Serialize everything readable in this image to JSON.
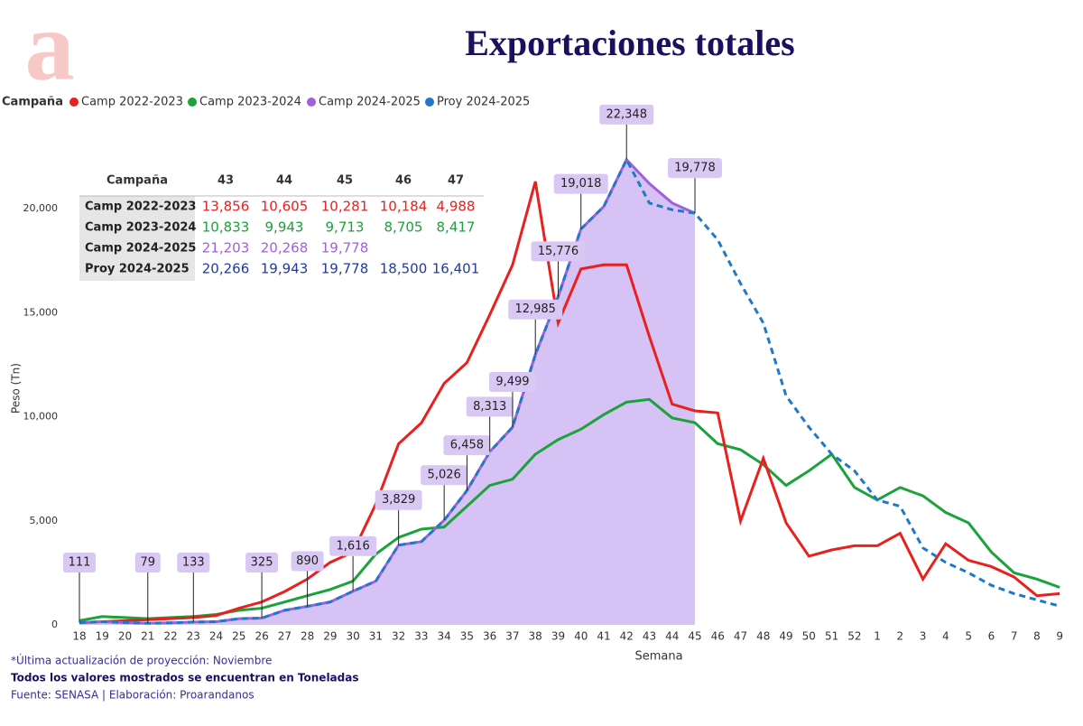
{
  "logo": "a",
  "chart_data": {
    "type": "line",
    "title": "Exportaciones totales",
    "legend_title": "Campaña",
    "xlabel": "Semana",
    "ylabel": "Peso (Tn)",
    "categories": [
      "18",
      "19",
      "20",
      "21",
      "22",
      "23",
      "24",
      "25",
      "26",
      "27",
      "28",
      "29",
      "30",
      "31",
      "32",
      "33",
      "34",
      "35",
      "36",
      "37",
      "38",
      "39",
      "40",
      "41",
      "42",
      "43",
      "44",
      "45",
      "46",
      "47",
      "48",
      "49",
      "50",
      "51",
      "52",
      "1",
      "2",
      "3",
      "4",
      "5",
      "6",
      "7",
      "8",
      "9"
    ],
    "ylim": [
      0,
      20000
    ],
    "yticks": [
      0,
      {
        "value": 5000,
        "label": "5,000"
      },
      {
        "value": 10000,
        "label": "10,000"
      },
      {
        "value": 15000,
        "label": "15,000"
      },
      {
        "value": 20000,
        "label": "20,000"
      }
    ],
    "series": [
      {
        "name": "Camp 2022-2023",
        "color": "#e8201e",
        "values": [
          100,
          150,
          200,
          250,
          300,
          350,
          450,
          800,
          1100,
          1600,
          2200,
          3000,
          3500,
          5800,
          8700,
          9700,
          11600,
          12600,
          14900,
          17300,
          21300,
          14500,
          17100,
          17300,
          17300,
          13856,
          10605,
          10281,
          10184,
          4988,
          8000,
          4900,
          3300,
          3600,
          3800,
          3800,
          4400,
          2200,
          3900,
          3100,
          2800,
          2300,
          1400,
          1500
        ]
      },
      {
        "name": "Camp 2023-2024",
        "color": "#1aa33a",
        "values": [
          200,
          400,
          350,
          300,
          350,
          400,
          500,
          700,
          800,
          1100,
          1400,
          1700,
          2100,
          3400,
          4200,
          4600,
          4700,
          5700,
          6700,
          7000,
          8200,
          8900,
          9400,
          10100,
          10700,
          10833,
          9943,
          9713,
          8705,
          8417,
          7700,
          6700,
          7400,
          8200,
          6600,
          6000,
          6600,
          6200,
          5400,
          4900,
          3500,
          2500,
          2200,
          1800
        ]
      },
      {
        "name": "Camp 2024-2025",
        "color": "#a25fdc",
        "fill": "#d6c2f5",
        "values": [
          111,
          150,
          110,
          79,
          100,
          133,
          150,
          300,
          325,
          700,
          890,
          1100,
          1616,
          2100,
          3829,
          4000,
          5026,
          6458,
          8313,
          9499,
          12985,
          15776,
          19018,
          20100,
          22348,
          21203,
          20268,
          19778,
          null,
          null,
          null,
          null,
          null,
          null,
          null,
          null,
          null,
          null,
          null,
          null,
          null,
          null,
          null,
          null
        ],
        "value_labels": [
          "111",
          null,
          null,
          "79",
          null,
          "133",
          null,
          null,
          "325",
          null,
          "890",
          null,
          "1,616",
          null,
          "3,829",
          null,
          "5,026",
          "6,458",
          "8,313",
          "9,499",
          "12,985",
          "15,776",
          "19,018",
          null,
          "22,348",
          null,
          null,
          "19,778",
          null,
          null,
          null,
          null,
          null,
          null,
          null,
          null,
          null,
          null,
          null,
          null,
          null,
          null,
          null,
          null
        ]
      },
      {
        "name": "Proy 2024-2025",
        "color": "#1f78c8",
        "dashed": true,
        "values": [
          111,
          150,
          110,
          79,
          100,
          133,
          150,
          300,
          325,
          700,
          890,
          1100,
          1616,
          2100,
          3829,
          4000,
          5026,
          6458,
          8313,
          9499,
          12985,
          15776,
          19018,
          20100,
          22348,
          20266,
          19943,
          19778,
          18500,
          16401,
          14500,
          11000,
          9500,
          8200,
          7400,
          6000,
          5700,
          3700,
          3000,
          2500,
          1900,
          1500,
          1200,
          900
        ]
      }
    ]
  },
  "table": {
    "header": [
      "Campaña",
      "43",
      "44",
      "45",
      "46",
      "47"
    ],
    "rows": [
      [
        "Camp 2022-2023",
        "13,856",
        "10,605",
        "10,281",
        "10,184",
        "4,988"
      ],
      [
        "Camp 2023-2024",
        "10,833",
        "9,943",
        "9,713",
        "8,705",
        "8,417"
      ],
      [
        "Camp 2024-2025",
        "21,203",
        "20,268",
        "19,778"
      ],
      [
        "Proy 2024-2025",
        "20,266",
        "19,943",
        "19,778",
        "18,500",
        "16,401"
      ]
    ],
    "row_colors": [
      "#e8201e",
      "#1aa33a",
      "#a25fdc",
      "#1f3aa8"
    ]
  },
  "footnotes": [
    "*Última actualización de proyección: Noviembre",
    "Todos los valores mostrados se encuentran en Toneladas",
    "Fuente: SENASA | Elaboración: Proarandanos"
  ]
}
